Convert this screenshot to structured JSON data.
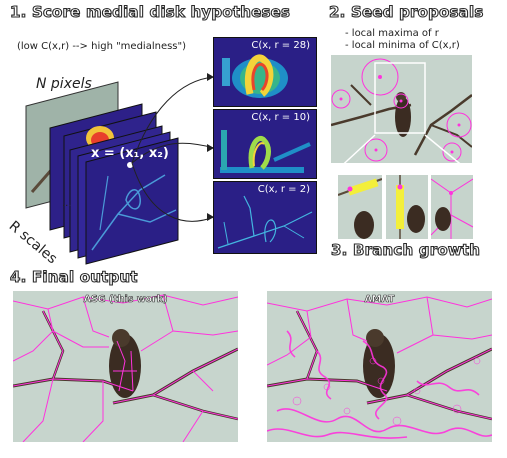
{
  "section1": {
    "heading": "1. Score medial disk hypotheses",
    "subtitle": "(low C(x,r) --> high \"medialness\")",
    "n_pixels": "N pixels",
    "r_scales": "R scales",
    "ellipsis": "...",
    "point_eq": "x = (x₁, x₂)",
    "panel_titles": [
      "C(x, r = 28)",
      "C(x, r = 10)",
      "C(x, r = 2)"
    ]
  },
  "section2": {
    "heading": "2. Seed proposals",
    "bullets": [
      "- local maxima of r",
      "- local minima of C(x,r)"
    ]
  },
  "section3": {
    "heading": "3. Branch growth"
  },
  "section4": {
    "heading": "4. Final output",
    "left_title": "ASG (this work)",
    "right_title": "AMAT"
  },
  "colors": {
    "accent": "#ff33dd",
    "heatmap_bg": "#2a1f86",
    "branch": "#f3ef3a"
  }
}
